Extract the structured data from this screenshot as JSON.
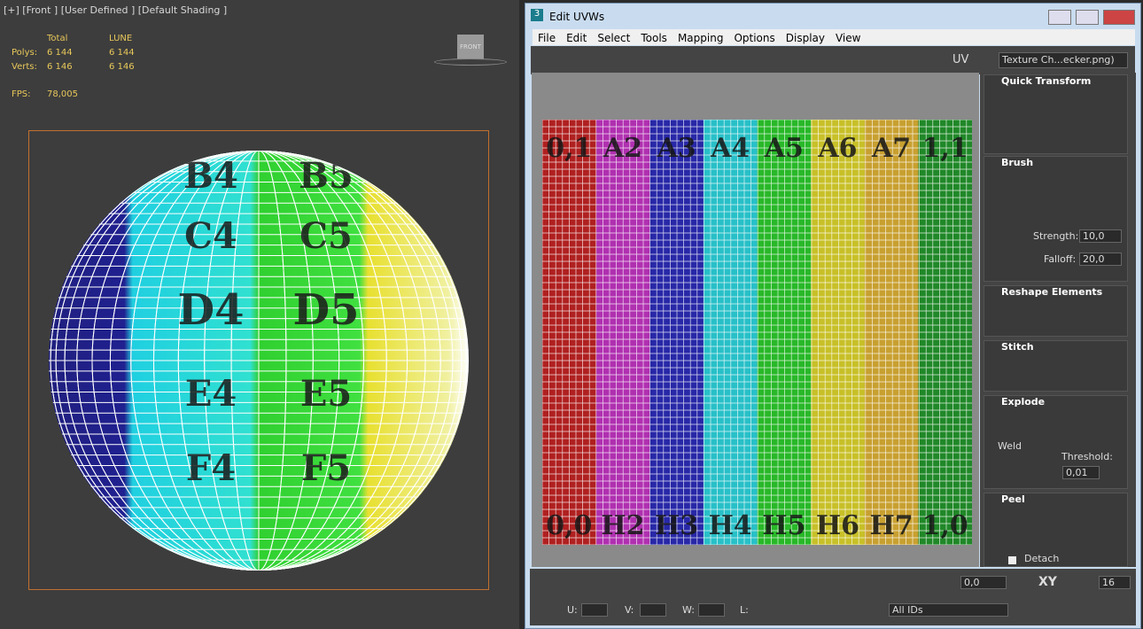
{
  "viewport": {
    "label": "[+] [Front ] [User Defined ] [Default Shading ]",
    "stats": {
      "headers": [
        "Total",
        "LUNE"
      ],
      "rows": [
        {
          "label": "Polys:",
          "values": [
            "6 144",
            "6 144"
          ]
        },
        {
          "label": "Verts:",
          "values": [
            "6 146",
            "6 146"
          ]
        }
      ]
    },
    "fps_label": "FPS:",
    "fps": "78,005",
    "viewcube": "FRONT",
    "sphere_labels": [
      [
        "B4",
        "B5"
      ],
      [
        "C4",
        "C5"
      ],
      [
        "D4",
        "D5"
      ],
      [
        "E4",
        "E5"
      ],
      [
        "F4",
        "F5"
      ]
    ]
  },
  "editor": {
    "title": "Edit UVWs",
    "menu": [
      "File",
      "Edit",
      "Select",
      "Tools",
      "Mapping",
      "Options",
      "Display",
      "View"
    ],
    "uv_label": "UV",
    "texture": "Texture Ch...ecker.png)",
    "uv_top": [
      "0,1",
      "A2",
      "A3",
      "A4",
      "A5",
      "A6",
      "A7",
      "1,1"
    ],
    "uv_bottom": [
      "0,0",
      "H2",
      "H3",
      "H4",
      "H5",
      "H6",
      "H7",
      "1,0"
    ],
    "panels": {
      "quick_transform": "Quick Transform",
      "brush": {
        "title": "Brush",
        "strength_label": "Strength:",
        "strength": "10,0",
        "falloff_label": "Falloff:",
        "falloff": "20,0"
      },
      "reshape": "Reshape Elements",
      "stitch": "Stitch",
      "explode": {
        "title": "Explode",
        "weld": "Weld",
        "threshold_label": "Threshold:",
        "threshold": "0,01"
      },
      "peel": {
        "title": "Peel",
        "detach": "Detach"
      }
    },
    "bottom": {
      "angle": "0,0",
      "plane": "XY",
      "count": "16",
      "u": "U:",
      "v": "V:",
      "w": "W:",
      "l": "L:",
      "ids": "All IDs"
    }
  }
}
